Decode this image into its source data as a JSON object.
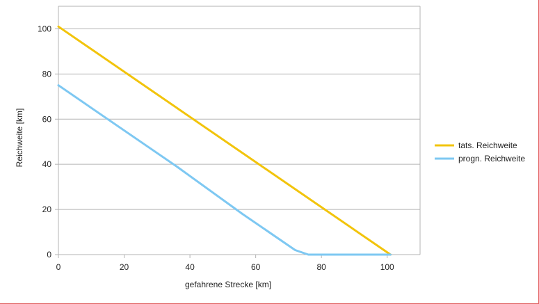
{
  "chart_data": {
    "type": "line",
    "title": "",
    "xlabel": "gefahrene Strecke [km]",
    "ylabel": "Reichweite [km]",
    "xlim": [
      0,
      110
    ],
    "ylim": [
      0,
      110
    ],
    "x_ticks": [
      0,
      20,
      40,
      60,
      80,
      100
    ],
    "y_ticks": [
      0,
      20,
      40,
      60,
      80,
      100
    ],
    "grid": "horizontal",
    "legend_position": "right",
    "series": [
      {
        "name": "tats. Reichweite",
        "color": "#f2c40c",
        "points": [
          [
            0,
            101
          ],
          [
            101,
            0
          ]
        ]
      },
      {
        "name": "progn. Reichweite",
        "color": "#7ec8f2",
        "points": [
          [
            0,
            75
          ],
          [
            15,
            60
          ],
          [
            36,
            39
          ],
          [
            56,
            18
          ],
          [
            72,
            2
          ],
          [
            76,
            0
          ],
          [
            101,
            0
          ]
        ]
      }
    ]
  },
  "colors": {
    "grid": "#b3b3b3",
    "axis": "#b3b3b3",
    "frame_border": "#e06060"
  }
}
